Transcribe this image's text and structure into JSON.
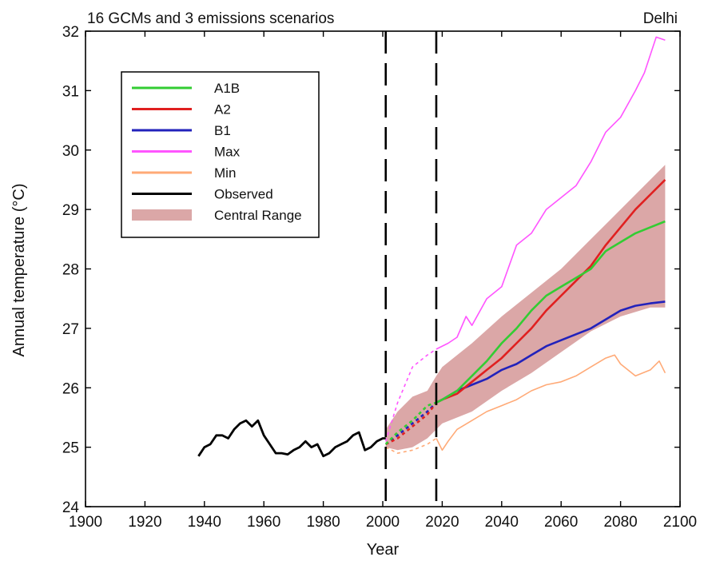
{
  "chart_data": {
    "type": "line",
    "title": "16 GCMs and 3 emissions scenarios",
    "location": "Delhi",
    "xlabel": "Year",
    "ylabel": "Annual temperature (°C)",
    "xlim": [
      1900,
      2100
    ],
    "ylim": [
      24,
      32
    ],
    "xticks": [
      1900,
      1920,
      1940,
      1960,
      1980,
      2000,
      2020,
      2040,
      2060,
      2080,
      2100
    ],
    "yticks": [
      24,
      25,
      26,
      27,
      28,
      29,
      30,
      31,
      32
    ],
    "vlines": [
      2001,
      2018
    ],
    "grid": false,
    "legend_position": "top-left",
    "legend": [
      {
        "label": "A1B",
        "color": "#33cc33",
        "kind": "line"
      },
      {
        "label": "A2",
        "color": "#e02020",
        "kind": "line"
      },
      {
        "label": "B1",
        "color": "#2222bb",
        "kind": "line"
      },
      {
        "label": "Max",
        "color": "#ff55ff",
        "kind": "line"
      },
      {
        "label": "Min",
        "color": "#ffaa77",
        "kind": "line"
      },
      {
        "label": "Observed",
        "color": "#000000",
        "kind": "line"
      },
      {
        "label": "Central Range",
        "color": "#dba7a7",
        "kind": "patch"
      }
    ],
    "band": {
      "name": "Central Range",
      "x": [
        2001,
        2005,
        2010,
        2015,
        2018,
        2020,
        2030,
        2040,
        2050,
        2060,
        2070,
        2080,
        2090,
        2095
      ],
      "upper": [
        25.3,
        25.6,
        25.85,
        25.95,
        26.2,
        26.35,
        26.75,
        27.2,
        27.6,
        28.0,
        28.5,
        29.0,
        29.5,
        29.75
      ],
      "lower": [
        25.0,
        24.95,
        25.0,
        25.15,
        25.3,
        25.4,
        25.6,
        25.95,
        26.25,
        26.6,
        26.95,
        27.2,
        27.35,
        27.35
      ]
    },
    "series": [
      {
        "name": "Observed",
        "color": "#000000",
        "x": [
          1938,
          1940,
          1942,
          1944,
          1946,
          1948,
          1950,
          1952,
          1954,
          1956,
          1958,
          1960,
          1962,
          1964,
          1966,
          1968,
          1970,
          1972,
          1974,
          1976,
          1978,
          1980,
          1982,
          1984,
          1986,
          1988,
          1990,
          1992,
          1994,
          1996,
          1998,
          2000,
          2001
        ],
        "y": [
          24.85,
          25.0,
          25.05,
          25.2,
          25.2,
          25.15,
          25.3,
          25.4,
          25.45,
          25.35,
          25.45,
          25.2,
          25.05,
          24.9,
          24.9,
          24.88,
          24.95,
          25.0,
          25.1,
          25.0,
          25.05,
          24.85,
          24.9,
          25.0,
          25.05,
          25.1,
          25.2,
          25.25,
          24.95,
          25.0,
          25.1,
          25.15,
          25.15
        ]
      },
      {
        "name": "A1B",
        "color": "#33cc33",
        "x": [
          2001,
          2005,
          2010,
          2015,
          2018,
          2020,
          2025,
          2030,
          2035,
          2040,
          2045,
          2050,
          2055,
          2060,
          2065,
          2070,
          2075,
          2080,
          2085,
          2090,
          2095
        ],
        "y": [
          25.05,
          25.25,
          25.45,
          25.7,
          25.75,
          25.8,
          25.95,
          26.2,
          26.45,
          26.75,
          27.0,
          27.3,
          27.55,
          27.7,
          27.85,
          28.0,
          28.3,
          28.45,
          28.6,
          28.7,
          28.8
        ]
      },
      {
        "name": "A2",
        "color": "#e02020",
        "x": [
          2001,
          2005,
          2010,
          2015,
          2018,
          2020,
          2025,
          2030,
          2035,
          2040,
          2045,
          2050,
          2055,
          2060,
          2065,
          2070,
          2075,
          2080,
          2085,
          2090,
          2095
        ],
        "y": [
          25.05,
          25.15,
          25.35,
          25.55,
          25.75,
          25.8,
          25.9,
          26.1,
          26.3,
          26.5,
          26.75,
          27.0,
          27.3,
          27.55,
          27.8,
          28.05,
          28.4,
          28.7,
          29.0,
          29.25,
          29.5
        ]
      },
      {
        "name": "B1",
        "color": "#2222bb",
        "x": [
          2001,
          2005,
          2010,
          2015,
          2018,
          2020,
          2025,
          2030,
          2035,
          2040,
          2045,
          2050,
          2055,
          2060,
          2065,
          2070,
          2075,
          2080,
          2085,
          2090,
          2095
        ],
        "y": [
          25.05,
          25.2,
          25.4,
          25.6,
          25.75,
          25.8,
          25.95,
          26.05,
          26.15,
          26.3,
          26.4,
          26.55,
          26.7,
          26.8,
          26.9,
          27.0,
          27.15,
          27.3,
          27.38,
          27.42,
          27.45
        ]
      },
      {
        "name": "Max",
        "color": "#ff55ff",
        "x": [
          2001,
          2005,
          2010,
          2015,
          2018,
          2022,
          2025,
          2028,
          2030,
          2035,
          2040,
          2045,
          2050,
          2055,
          2060,
          2065,
          2070,
          2075,
          2080,
          2085,
          2088,
          2090,
          2092,
          2095
        ],
        "y": [
          25.1,
          25.75,
          26.35,
          26.55,
          26.65,
          26.75,
          26.85,
          27.2,
          27.05,
          27.5,
          27.7,
          28.4,
          28.6,
          29.0,
          29.2,
          29.4,
          29.8,
          30.3,
          30.55,
          31.0,
          31.3,
          31.6,
          31.9,
          31.85
        ]
      },
      {
        "name": "Min",
        "color": "#ffaa77",
        "x": [
          2001,
          2005,
          2010,
          2015,
          2018,
          2020,
          2022,
          2025,
          2030,
          2035,
          2040,
          2045,
          2050,
          2055,
          2060,
          2065,
          2070,
          2075,
          2078,
          2080,
          2085,
          2090,
          2093,
          2095
        ],
        "y": [
          25.0,
          24.9,
          24.95,
          25.05,
          25.15,
          24.95,
          25.1,
          25.3,
          25.45,
          25.6,
          25.7,
          25.8,
          25.95,
          26.05,
          26.1,
          26.2,
          26.35,
          26.5,
          26.55,
          26.4,
          26.2,
          26.3,
          26.45,
          26.25
        ]
      }
    ]
  }
}
